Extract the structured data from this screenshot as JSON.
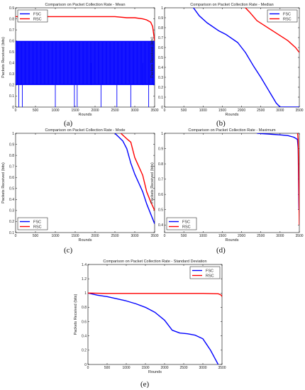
{
  "chart_data": [
    {
      "panel_label": "(a)",
      "type": "line",
      "title": "Comparison on Packet Collection Rate - Mean",
      "xlabel": "Rounds",
      "ylabel": "Packets Received (bits)",
      "xlim": [
        0,
        3500
      ],
      "ylim": [
        0,
        0.9
      ],
      "xticks": [
        0,
        500,
        1000,
        1500,
        2000,
        2500,
        3000,
        3500
      ],
      "yticks": [
        0,
        0.1,
        0.2,
        0.3,
        0.4,
        0.5,
        0.6,
        0.7,
        0.8,
        0.9
      ],
      "legend": "top-left",
      "series": [
        {
          "name": "FSC",
          "color": "#0000ff",
          "style": "band",
          "band": [
            0.2,
            0.6
          ],
          "spikes": [
            {
              "x": 80,
              "y": 0
            },
            {
              "x": 170,
              "y": 0
            },
            {
              "x": 1000,
              "y": 0
            },
            {
              "x": 1480,
              "y": 0
            },
            {
              "x": 1550,
              "y": 0
            },
            {
              "x": 1900,
              "y": 0.4
            },
            {
              "x": 2150,
              "y": 0
            },
            {
              "x": 2550,
              "y": 0
            },
            {
              "x": 2900,
              "y": 0
            },
            {
              "x": 3200,
              "y": 0.4
            },
            {
              "x": 3350,
              "y": 0
            }
          ],
          "x": [],
          "values": []
        },
        {
          "name": "RSC",
          "color": "#ff0000",
          "x": [
            0,
            500,
            1000,
            1500,
            2000,
            2500,
            2800,
            3000,
            3200,
            3300,
            3400,
            3450,
            3480,
            3500
          ],
          "values": [
            0.82,
            0.82,
            0.82,
            0.82,
            0.82,
            0.82,
            0.81,
            0.81,
            0.8,
            0.79,
            0.77,
            0.73,
            0.65,
            0.6
          ]
        }
      ]
    },
    {
      "panel_label": "(b)",
      "type": "line",
      "title": "Comparison on Packet Collection Rate - Median",
      "xlabel": "Rounds",
      "ylabel": "Packets Received (bits)",
      "xlim": [
        0,
        3500
      ],
      "ylim": [
        0,
        1
      ],
      "xticks": [
        0,
        500,
        1000,
        1500,
        2000,
        2500,
        3000,
        3500
      ],
      "yticks": [
        0,
        0.1,
        0.2,
        0.3,
        0.4,
        0.5,
        0.6,
        0.7,
        0.8,
        0.9,
        1
      ],
      "legend": "top-right",
      "series": [
        {
          "name": "FSC",
          "color": "#0000ff",
          "x": [
            750,
            900,
            1100,
            1400,
            1600,
            1900,
            2100,
            2300,
            2500,
            2700,
            2900,
            3000,
            3500
          ],
          "values": [
            1.0,
            0.92,
            0.85,
            0.77,
            0.73,
            0.65,
            0.55,
            0.42,
            0.3,
            0.17,
            0.04,
            0.0,
            0.0
          ]
        },
        {
          "name": "RSC",
          "color": "#ff0000",
          "x": [
            2100,
            2200,
            2400,
            2600,
            2800,
            3000,
            3200,
            3400,
            3500
          ],
          "values": [
            1.0,
            0.96,
            0.87,
            0.82,
            0.77,
            0.72,
            0.67,
            0.6,
            0.55
          ]
        }
      ]
    },
    {
      "panel_label": "(c)",
      "type": "line",
      "title": "Comparison on Packet Collection Rate - Mode",
      "xlabel": "Rounds",
      "ylabel": "Packets Received (bits)",
      "xlim": [
        0,
        3500
      ],
      "ylim": [
        0.1,
        1
      ],
      "xticks": [
        0,
        500,
        1000,
        1500,
        2000,
        2500,
        3000,
        3500
      ],
      "yticks": [
        0.1,
        0.2,
        0.3,
        0.4,
        0.5,
        0.6,
        0.7,
        0.8,
        0.9,
        1
      ],
      "legend": "bottom-left",
      "series": [
        {
          "name": "FSC",
          "color": "#0000ff",
          "x": [
            2500,
            2700,
            2800,
            2900,
            3000,
            3100,
            3200,
            3300,
            3400,
            3500
          ],
          "values": [
            1.0,
            0.93,
            0.86,
            0.73,
            0.63,
            0.55,
            0.47,
            0.36,
            0.27,
            0.18
          ]
        },
        {
          "name": "RSC",
          "color": "#ff0000",
          "x": [
            2650,
            2800,
            2900,
            3000,
            3100,
            3200,
            3300,
            3400,
            3500
          ],
          "values": [
            1.0,
            0.95,
            0.92,
            0.78,
            0.7,
            0.62,
            0.47,
            0.38,
            0.3
          ]
        }
      ]
    },
    {
      "panel_label": "(d)",
      "type": "line",
      "title": "Comparison on Packet Collection Rate - Maximum",
      "xlabel": "Rounds",
      "ylabel": "Packets Received (bits)",
      "xlim": [
        0,
        3500
      ],
      "ylim": [
        0.35,
        1
      ],
      "xticks": [
        0,
        500,
        1000,
        1500,
        2000,
        2500,
        3000,
        3500
      ],
      "yticks": [
        0.4,
        0.5,
        0.6,
        0.7,
        0.8,
        0.9,
        1
      ],
      "legend": "bottom-left",
      "series": [
        {
          "name": "FSC",
          "color": "#0000ff",
          "x": [
            2400,
            2700,
            3000,
            3200,
            3350,
            3420,
            3450,
            3470,
            3480,
            3490
          ],
          "values": [
            1.0,
            0.995,
            0.99,
            0.985,
            0.975,
            0.965,
            0.96,
            0.9,
            0.7,
            0.5
          ]
        },
        {
          "name": "RSC",
          "color": "#ff0000",
          "x": [
            3450,
            3460,
            3470,
            3480,
            3490,
            3500
          ],
          "values": [
            1.0,
            0.99,
            0.95,
            0.8,
            0.6,
            0.4
          ]
        }
      ]
    },
    {
      "panel_label": "(e)",
      "type": "line",
      "title": "Comparison on Packet Collection Rate - Standard Deviation",
      "xlabel": "Rounds",
      "ylabel": "Packets Received (bits)",
      "xlim": [
        0,
        3500
      ],
      "ylim": [
        0,
        1.4
      ],
      "xticks": [
        0,
        500,
        1000,
        1500,
        2000,
        2500,
        3000,
        3500
      ],
      "yticks": [
        0,
        0.2,
        0.4,
        0.6,
        0.8,
        1,
        1.2,
        1.4
      ],
      "legend": "top-right",
      "series": [
        {
          "name": "FSC",
          "color": "#0000ff",
          "x": [
            0,
            250,
            500,
            750,
            1000,
            1250,
            1500,
            1750,
            2000,
            2200,
            2400,
            2600,
            2800,
            3000,
            3100,
            3200,
            3300,
            3350,
            3400
          ],
          "values": [
            1.0,
            0.97,
            0.95,
            0.92,
            0.89,
            0.85,
            0.8,
            0.73,
            0.62,
            0.48,
            0.44,
            0.43,
            0.41,
            0.36,
            0.28,
            0.2,
            0.1,
            0.05,
            0.0
          ]
        },
        {
          "name": "RSC",
          "color": "#ff0000",
          "x": [
            0,
            500,
            1000,
            1500,
            2000,
            2500,
            3000,
            3400,
            3450,
            3480,
            3500
          ],
          "values": [
            1.0,
            0.995,
            0.995,
            0.995,
            0.995,
            0.995,
            0.995,
            0.99,
            0.98,
            0.97,
            0.95
          ]
        }
      ]
    }
  ]
}
